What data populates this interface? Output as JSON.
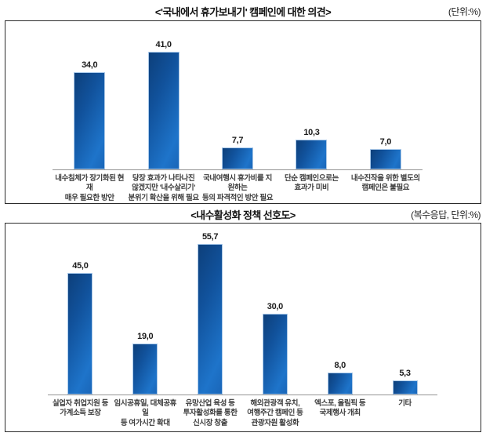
{
  "charts": [
    {
      "title": "<'국내에서 휴가보내기' 캠페인에 대한 의견>",
      "unit_note": "(단위:%)",
      "chart_data": {
        "type": "bar",
        "categories": [
          [
            "내수침체가 장기화된 현재",
            "매우 필요한 방안"
          ],
          [
            "당장 효과가 나타나진",
            "않겠지만 '내수살리기'",
            "분위기 확산을 위해 필요"
          ],
          [
            "국내여행시 휴가비를 지원하는",
            "등의 파격적인 방안 필요"
          ],
          [
            "단순 캠페인으로는",
            "효과가 미비"
          ],
          [
            "내수진작을 위한 별도의",
            "캠페인은 불필요"
          ]
        ],
        "values": [
          34.0,
          41.0,
          7.7,
          10.3,
          7.0
        ],
        "value_labels": [
          "34,0",
          "41,0",
          "7,7",
          "10,3",
          "7,0"
        ],
        "unit": "%",
        "ylim": [
          0,
          45
        ],
        "grid": false,
        "legend": false,
        "bar_color_dark": "#0d3f7a",
        "bar_color_light": "#1e74ca"
      }
    },
    {
      "title": "<내수활성화 정책 선호도>",
      "unit_note": "(복수응답, 단위:%)",
      "chart_data": {
        "type": "bar",
        "categories": [
          [
            "실업자 취업지원 등",
            "가계소득 보장"
          ],
          [
            "임시공휴일, 대체공휴일",
            "등 여가시간 확대"
          ],
          [
            "유망산업 육성 등",
            "투자활성화를 통한",
            "신시장 창출"
          ],
          [
            "해외관광객 유치,",
            "여행주간 캠페인 등",
            "관광자원 활성화"
          ],
          [
            "엑스포, 올림픽 등",
            "국제행사 개최"
          ],
          [
            "기타"
          ]
        ],
        "values": [
          45.0,
          19.0,
          55.7,
          30.0,
          8.0,
          5.3
        ],
        "value_labels": [
          "45,0",
          "19,0",
          "55,7",
          "30,0",
          "8,0",
          "5,3"
        ],
        "unit": "%",
        "ylim": [
          0,
          60
        ],
        "grid": false,
        "legend": false,
        "bar_color_dark": "#0d3f7a",
        "bar_color_light": "#1e74ca"
      }
    }
  ]
}
